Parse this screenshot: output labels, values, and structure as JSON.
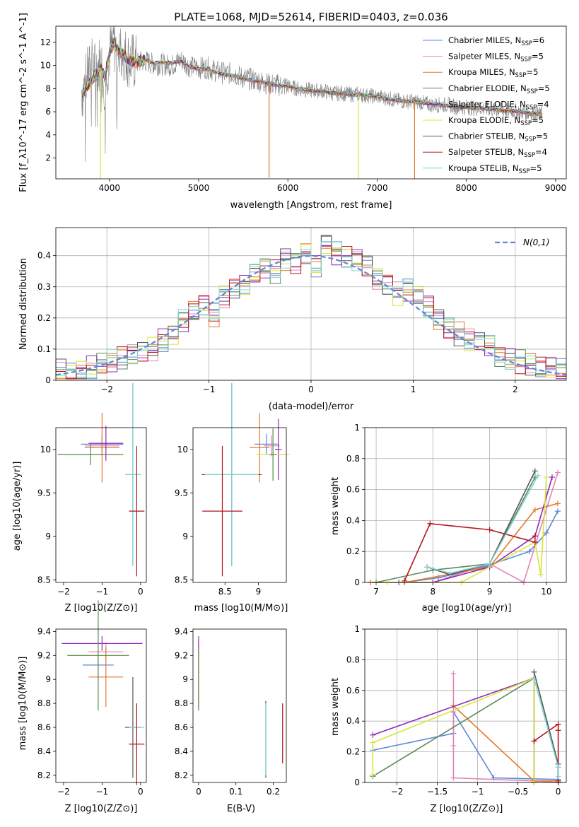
{
  "figure_title": "PLATE=1068, MJD=52614, FIBERID=0403, z=0.036",
  "legend_entries": [
    {
      "name": "Chabrier MILES, N_SSP=6",
      "color": "#5b87d6"
    },
    {
      "name": "Salpeter MILES, N_SSP=5",
      "color": "#e483b6"
    },
    {
      "name": "Kroupa MILES, N_SSP=5",
      "color": "#e7772a"
    },
    {
      "name": "Chabrier ELODIE, N_SSP=5",
      "color": "#5b8a5b"
    },
    {
      "name": "Salpeter ELODIE, N_SSP=4",
      "color": "#8f27ba"
    },
    {
      "name": "Kroupa ELODIE, N_SSP=5",
      "color": "#d6e63a"
    },
    {
      "name": "Chabrier STELIB, N_SSP=5",
      "color": "#555555"
    },
    {
      "name": "Salpeter STELIB, N_SSP=4",
      "color": "#b3151b"
    },
    {
      "name": "Kroupa STELIB, N_SSP=5",
      "color": "#7fd4d4"
    }
  ],
  "chart_data": [
    {
      "id": "spectrum",
      "type": "line",
      "title": "",
      "xlabel": "wavelength [Angstrom, rest frame]",
      "ylabel": "Flux [f_λ10^-17 erg cm^-2 s^-1 A^-1]",
      "xlim": [
        3400,
        9120
      ],
      "ylim": [
        0.2,
        13.4
      ],
      "xticks": [
        4000,
        5000,
        6000,
        7000,
        8000,
        9000
      ],
      "yticks": [
        2,
        4,
        6,
        8,
        10,
        12
      ],
      "grid": false,
      "legend": "upper right",
      "data_color": "#808080",
      "data_x": [
        3690,
        3750,
        3800,
        3850,
        3900,
        3950,
        4000,
        4050,
        4100,
        4150,
        4200,
        4300,
        4400,
        4500,
        4600,
        4700,
        4800,
        4900,
        5000,
        5100,
        5200,
        5300,
        5400,
        5500,
        5600,
        5700,
        5800,
        5900,
        6000,
        6100,
        6200,
        6300,
        6400,
        6500,
        6600,
        6700,
        6800,
        6900,
        7000,
        7100,
        7200,
        7300,
        7400,
        7500,
        7600,
        7700,
        7800,
        7900,
        8000,
        8100,
        8200,
        8300,
        8400,
        8500,
        8600,
        8700,
        8800,
        8850
      ],
      "data_y": [
        7.5,
        9.0,
        10.0,
        9.6,
        10.4,
        8.4,
        11.0,
        12.0,
        11.0,
        11.3,
        10.6,
        10.2,
        10.4,
        10.1,
        10.1,
        10.0,
        10.5,
        9.9,
        9.8,
        9.8,
        9.5,
        9.3,
        9.3,
        8.9,
        8.8,
        8.6,
        8.4,
        8.3,
        8.2,
        8.0,
        7.9,
        7.8,
        7.8,
        7.6,
        7.6,
        7.5,
        7.5,
        7.4,
        7.3,
        7.2,
        7.0,
        6.9,
        6.9,
        6.8,
        6.6,
        6.6,
        6.6,
        6.4,
        6.4,
        6.3,
        6.3,
        6.2,
        6.1,
        6.1,
        6.0,
        5.9,
        5.8,
        5.8
      ],
      "model_x": [
        3690,
        3750,
        3800,
        3850,
        3900,
        3950,
        4000,
        4050,
        4100,
        4150,
        4200,
        4300,
        4400,
        4500,
        4600,
        4700,
        4800,
        4900,
        5000,
        5100,
        5200,
        5300,
        5400,
        5500,
        5600,
        5700,
        5800,
        5900,
        6000,
        6100,
        6200,
        6300,
        6400,
        6500,
        6600,
        6700,
        6800,
        6900,
        7000,
        7100,
        7200,
        7300,
        7400,
        7500,
        7600,
        7700,
        7800,
        7900,
        8000,
        8100,
        8200,
        8300,
        8400,
        8500,
        8600,
        8700,
        8800,
        8850
      ],
      "model_y": [
        7.4,
        8.2,
        8.6,
        9.2,
        9.8,
        9.0,
        11.0,
        12.0,
        11.2,
        11.0,
        10.6,
        10.3,
        10.5,
        10.2,
        10.3,
        10.2,
        10.4,
        9.9,
        9.7,
        9.7,
        9.4,
        9.2,
        9.1,
        8.9,
        8.7,
        8.6,
        8.4,
        8.3,
        8.2,
        8.0,
        7.9,
        7.8,
        7.8,
        7.6,
        7.6,
        7.5,
        7.5,
        7.4,
        7.3,
        7.1,
        7.0,
        6.9,
        6.9,
        6.8,
        6.7,
        6.6,
        6.5,
        6.4,
        6.4,
        6.3,
        6.3,
        6.2,
        6.1,
        6.1,
        6.0,
        5.9,
        5.8,
        5.7
      ],
      "dips": [
        {
          "x": 3900,
          "y": 0.2,
          "color": "#d6e63a"
        },
        {
          "x": 5790,
          "y": 0.3,
          "color": "#e7772a"
        },
        {
          "x": 6790,
          "y": 0.2,
          "color": "#d6e63a"
        },
        {
          "x": 7420,
          "y": 0.2,
          "color": "#e7772a"
        }
      ]
    },
    {
      "id": "residuals",
      "type": "line",
      "title": "",
      "xlabel": "(data-model)/error",
      "ylabel": "Normed distribution",
      "xlim": [
        -2.5,
        2.5
      ],
      "ylim": [
        0,
        0.49
      ],
      "xticks": [
        -2,
        -1,
        0,
        1,
        2
      ],
      "yticks": [
        0.0,
        0.1,
        0.2,
        0.3,
        0.4
      ],
      "grid": true,
      "legend": "upper right",
      "legend_label": "N(0,1)",
      "gaussian_color": "#5b87d6",
      "bin_edges": [
        -2.5,
        -2.4,
        -2.3,
        -2.2,
        -2.1,
        -2.0,
        -1.9,
        -1.8,
        -1.7,
        -1.6,
        -1.5,
        -1.4,
        -1.3,
        -1.2,
        -1.1,
        -1.0,
        -0.9,
        -0.8,
        -0.7,
        -0.6,
        -0.5,
        -0.4,
        -0.3,
        -0.2,
        -0.1,
        0.0,
        0.1,
        0.2,
        0.3,
        0.4,
        0.5,
        0.6,
        0.7,
        0.8,
        0.9,
        1.0,
        1.1,
        1.2,
        1.3,
        1.4,
        1.5,
        1.6,
        1.7,
        1.8,
        1.9,
        2.0,
        2.1,
        2.2,
        2.3,
        2.4,
        2.5
      ],
      "hist_heights": [
        0.03,
        0.02,
        0.03,
        0.04,
        0.05,
        0.06,
        0.07,
        0.08,
        0.09,
        0.1,
        0.13,
        0.15,
        0.19,
        0.22,
        0.24,
        0.21,
        0.27,
        0.3,
        0.31,
        0.34,
        0.36,
        0.35,
        0.39,
        0.38,
        0.41,
        0.37,
        0.44,
        0.41,
        0.4,
        0.39,
        0.37,
        0.33,
        0.31,
        0.28,
        0.29,
        0.27,
        0.24,
        0.2,
        0.17,
        0.15,
        0.13,
        0.12,
        0.11,
        0.08,
        0.07,
        0.06,
        0.05,
        0.04,
        0.04,
        0.03
      ]
    },
    {
      "id": "age-vs-Z",
      "type": "scatter",
      "xlabel": "Z [log10(Z/Z⊙)]",
      "ylabel": "age [log10(age/yr)]",
      "xlim": [
        -2.2,
        0.15
      ],
      "ylim": [
        8.47,
        10.25
      ],
      "xticks": [
        -2,
        -1,
        0
      ],
      "yticks": [
        8.5,
        9.0,
        9.5,
        10.0
      ],
      "grid": false,
      "points": [
        {
          "x": -1.0,
          "y": 10.06,
          "xerr": 0.55,
          "yerr": 0.12,
          "color": "#5b87d6"
        },
        {
          "x": -1.0,
          "y": 10.04,
          "xerr": 0.45,
          "yerr": 0.12,
          "color": "#e483b6"
        },
        {
          "x": -1.0,
          "y": 10.02,
          "xerr": 0.45,
          "yerr": 0.4,
          "color": "#e7772a"
        },
        {
          "x": -0.9,
          "y": 10.07,
          "xerr": 0.45,
          "yerr": 0.2,
          "color": "#8f27ba"
        },
        {
          "x": -1.3,
          "y": 9.94,
          "xerr": 0.85,
          "yerr": 0.12,
          "color": "#d6e63a"
        },
        {
          "x": -1.3,
          "y": 9.94,
          "xerr": 0.85,
          "yerr": 0.12,
          "color": "#5b8a5b"
        },
        {
          "x": -0.2,
          "y": 9.71,
          "xerr": 0.2,
          "yerr": 1.05,
          "color": "#555555"
        },
        {
          "x": -0.2,
          "y": 9.71,
          "xerr": 0.2,
          "yerr": 1.05,
          "color": "#7fd4d4"
        },
        {
          "x": -0.1,
          "y": 9.29,
          "xerr": 0.2,
          "yerr": 0.75,
          "color": "#b3151b"
        }
      ]
    },
    {
      "id": "age-vs-mass",
      "type": "scatter",
      "xlabel": "mass [log10(M/M⊙)]",
      "ylabel": "",
      "xlim": [
        8.02,
        9.42
      ],
      "ylim": [
        8.47,
        10.25
      ],
      "xticks": [
        8.5,
        9.0
      ],
      "yticks": [
        8.5,
        9.0,
        9.5,
        10.0
      ],
      "grid": false,
      "points": [
        {
          "x": 9.12,
          "y": 10.06,
          "xerr": 0.18,
          "yerr": 0.12,
          "color": "#5b87d6"
        },
        {
          "x": 9.2,
          "y": 10.04,
          "xerr": 0.12,
          "yerr": 0.12,
          "color": "#e483b6"
        },
        {
          "x": 9.02,
          "y": 10.02,
          "xerr": 0.15,
          "yerr": 0.4,
          "color": "#e7772a"
        },
        {
          "x": 9.3,
          "y": 10.0,
          "xerr": 0.05,
          "yerr": 0.35,
          "color": "#8f27ba"
        },
        {
          "x": 9.22,
          "y": 9.94,
          "xerr": 0.25,
          "yerr": 0.3,
          "color": "#d6e63a"
        },
        {
          "x": 9.22,
          "y": 9.94,
          "xerr": 0.05,
          "yerr": 0.3,
          "color": "#5b8a5b"
        },
        {
          "x": 8.6,
          "y": 9.71,
          "xerr": 0.45,
          "yerr": 1.05,
          "color": "#555555"
        },
        {
          "x": 8.6,
          "y": 9.71,
          "xerr": 0.4,
          "yerr": 1.05,
          "color": "#7fd4d4"
        },
        {
          "x": 8.46,
          "y": 9.29,
          "xerr": 0.3,
          "yerr": 0.75,
          "color": "#b3151b"
        }
      ]
    },
    {
      "id": "massweight-vs-age",
      "type": "line",
      "xlabel": "age [log10(age/yr)]",
      "ylabel": "mass weight",
      "xlim": [
        6.8,
        10.35
      ],
      "ylim": [
        0.0,
        1.0
      ],
      "xticks": [
        7,
        8,
        9,
        10
      ],
      "yticks": [
        0.0,
        0.2,
        0.4,
        0.6,
        0.8,
        1.0
      ],
      "grid": true,
      "series": [
        {
          "color": "#5b87d6",
          "x": [
            7.5,
            8.1,
            8.9,
            9.7,
            10.0,
            10.2
          ],
          "y": [
            0.0,
            0.03,
            0.1,
            0.2,
            0.32,
            0.46
          ]
        },
        {
          "color": "#e483b6",
          "x": [
            7.2,
            8.0,
            9.0,
            9.6,
            10.2
          ],
          "y": [
            0.0,
            0.0,
            0.12,
            0.0,
            0.71
          ]
        },
        {
          "color": "#e7772a",
          "x": [
            6.9,
            7.5,
            9.0,
            9.8,
            10.2
          ],
          "y": [
            0.0,
            0.0,
            0.1,
            0.47,
            0.51
          ]
        },
        {
          "color": "#5b8a5b",
          "x": [
            7.0,
            8.0,
            9.0,
            9.8
          ],
          "y": [
            0.0,
            0.08,
            0.12,
            0.68
          ]
        },
        {
          "color": "#8f27ba",
          "x": [
            7.4,
            8.0,
            9.0,
            9.8,
            10.1
          ],
          "y": [
            0.0,
            0.0,
            0.1,
            0.3,
            0.68
          ]
        },
        {
          "color": "#d6e63a",
          "x": [
            7.2,
            8.5,
            9.8,
            9.9,
            10.0
          ],
          "y": [
            0.0,
            0.0,
            0.26,
            0.05,
            0.68
          ]
        },
        {
          "color": "#555555",
          "x": [
            7.9,
            8.3,
            9.0,
            9.8
          ],
          "y": [
            0.1,
            0.05,
            0.12,
            0.72
          ]
        },
        {
          "color": "#b3151b",
          "x": [
            7.5,
            7.95,
            9.0,
            9.8,
            9.8
          ],
          "y": [
            0.01,
            0.38,
            0.34,
            0.26,
            0.3
          ]
        },
        {
          "color": "#7fd4d4",
          "x": [
            7.9,
            8.3,
            9.0,
            9.85
          ],
          "y": [
            0.1,
            0.06,
            0.12,
            0.69
          ]
        }
      ]
    },
    {
      "id": "mass-vs-Z",
      "type": "scatter",
      "xlabel": "Z [log10(Z/Z⊙)]",
      "ylabel": "mass [log10(M/M⊙)]",
      "xlim": [
        -2.2,
        0.15
      ],
      "ylim": [
        8.14,
        9.42
      ],
      "xticks": [
        -2,
        -1,
        0
      ],
      "yticks": [
        8.2,
        8.4,
        8.6,
        8.8,
        9.0,
        9.2,
        9.4
      ],
      "grid": false,
      "points": [
        {
          "x": -1.1,
          "y": 9.12,
          "xerr": 0.4,
          "yerr": 0.12,
          "color": "#5b87d6"
        },
        {
          "x": -0.9,
          "y": 9.23,
          "xerr": 0.45,
          "yerr": 0.08,
          "color": "#e483b6"
        },
        {
          "x": -0.9,
          "y": 9.02,
          "xerr": 0.45,
          "yerr": 0.25,
          "color": "#e7772a"
        },
        {
          "x": -1.0,
          "y": 9.3,
          "xerr": 1.05,
          "yerr": 0.06,
          "color": "#8f27ba"
        },
        {
          "x": -1.1,
          "y": 9.2,
          "xerr": 0.8,
          "yerr": 0.05,
          "color": "#d6e63a"
        },
        {
          "x": -1.1,
          "y": 9.2,
          "xerr": 0.8,
          "yerr": 0.46,
          "color": "#5b8a5b"
        },
        {
          "x": -0.2,
          "y": 8.6,
          "xerr": 0.2,
          "yerr": 0.42,
          "color": "#555555"
        },
        {
          "x": -0.1,
          "y": 8.6,
          "xerr": 0.2,
          "yerr": 0.2,
          "color": "#7fd4d4"
        },
        {
          "x": -0.1,
          "y": 8.46,
          "xerr": 0.2,
          "yerr": 0.34,
          "color": "#b3151b"
        }
      ]
    },
    {
      "id": "mass-vs-ebv",
      "type": "scatter",
      "xlabel": "E(B-V)",
      "ylabel": "",
      "xlim": [
        -0.015,
        0.235
      ],
      "ylim": [
        8.14,
        9.42
      ],
      "xticks": [
        0.0,
        0.1,
        0.2
      ],
      "yticks": [
        8.2,
        8.4,
        8.6,
        8.8,
        9.0,
        9.2,
        9.4
      ],
      "grid": false,
      "points": [
        {
          "x": 0.0,
          "y": 9.12,
          "xerr": 0.0,
          "yerr": 0.12,
          "color": "#5b87d6"
        },
        {
          "x": 0.0,
          "y": 9.23,
          "xerr": 0.0,
          "yerr": 0.08,
          "color": "#e483b6"
        },
        {
          "x": 0.0,
          "y": 9.02,
          "xerr": 0.0,
          "yerr": 0.25,
          "color": "#e7772a"
        },
        {
          "x": 0.0,
          "y": 9.3,
          "xerr": 0.0,
          "yerr": 0.06,
          "color": "#8f27ba"
        },
        {
          "x": 0.0,
          "y": 9.0,
          "xerr": 0.0,
          "yerr": 0.26,
          "color": "#d6e63a"
        },
        {
          "x": 0.0,
          "y": 9.0,
          "xerr": 0.0,
          "yerr": 0.26,
          "color": "#5b8a5b"
        },
        {
          "x": 0.18,
          "y": 8.5,
          "xerr": 0.0,
          "yerr": 0.32,
          "color": "#555555"
        },
        {
          "x": 0.18,
          "y": 8.5,
          "xerr": 0.0,
          "yerr": 0.3,
          "color": "#7fd4d4"
        },
        {
          "x": 0.225,
          "y": 8.55,
          "xerr": 0.0,
          "yerr": 0.25,
          "color": "#b3151b"
        }
      ]
    },
    {
      "id": "massweight-vs-Z",
      "type": "line",
      "xlabel": "Z [log10(Z/Z⊙)]",
      "ylabel": "mass weight",
      "xlim": [
        -2.4,
        0.1
      ],
      "ylim": [
        0.0,
        1.0
      ],
      "xticks": [
        -2.0,
        -1.5,
        -1.0,
        -0.5,
        0.0
      ],
      "yticks": [
        0.0,
        0.2,
        0.4,
        0.6,
        0.8,
        1.0
      ],
      "grid": true,
      "series": [
        {
          "color": "#5b87d6",
          "x": [
            -2.3,
            -1.3,
            -1.3,
            -0.8,
            0.0,
            0.0
          ],
          "y": [
            0.21,
            0.32,
            0.46,
            0.03,
            0.02,
            0.1
          ]
        },
        {
          "color": "#e483b6",
          "x": [
            -1.3,
            -1.3,
            -1.3,
            -0.3,
            0.0
          ],
          "y": [
            0.71,
            0.24,
            0.03,
            0.01,
            0.0
          ]
        },
        {
          "color": "#e7772a",
          "x": [
            -1.3,
            -0.3,
            0.0
          ],
          "y": [
            0.5,
            0.01,
            0.01
          ]
        },
        {
          "color": "#5b8a5b",
          "x": [
            -2.3,
            -0.3,
            -0.3,
            -0.3
          ],
          "y": [
            0.04,
            0.68,
            0.0,
            0.0
          ]
        },
        {
          "color": "#8f27ba",
          "x": [
            -2.3,
            -0.3,
            -0.3
          ],
          "y": [
            0.31,
            0.68,
            0.0
          ]
        },
        {
          "color": "#d6e63a",
          "x": [
            -2.3,
            -2.3,
            -0.3,
            -0.3,
            -0.3
          ],
          "y": [
            0.05,
            0.26,
            0.68,
            0.0,
            0.0
          ]
        },
        {
          "color": "#555555",
          "x": [
            -0.3,
            0.0,
            0.0
          ],
          "y": [
            0.72,
            0.12,
            0.0
          ]
        },
        {
          "color": "#b3151b",
          "x": [
            -0.3,
            0.0,
            0.0,
            0.0
          ],
          "y": [
            0.27,
            0.38,
            0.34,
            0.01
          ]
        },
        {
          "color": "#7fd4d4",
          "x": [
            -0.3,
            0.0,
            0.0
          ],
          "y": [
            0.68,
            0.1,
            0.04
          ]
        }
      ]
    }
  ]
}
